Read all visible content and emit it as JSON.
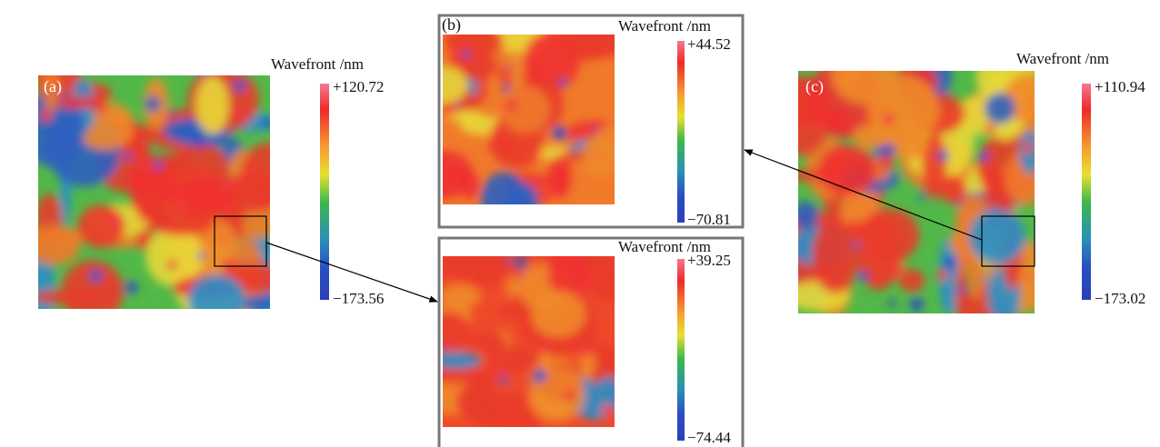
{
  "panels": [
    {
      "label": "(a)",
      "colorbar": {
        "title": "Wavefront /nm",
        "max": "+120.72",
        "min": "−173.56"
      }
    },
    {
      "label": "(b)",
      "colorbar": {
        "title": "Wavefront /nm",
        "max": "+44.52",
        "min": "−70.81"
      }
    },
    {
      "colorbar": {
        "title": "Wavefront /nm",
        "max": "+39.25",
        "min": "−74.44"
      }
    },
    {
      "label": "(c)",
      "colorbar": {
        "title": "Wavefront /nm",
        "max": "+110.94",
        "min": "−173.02"
      }
    }
  ]
}
